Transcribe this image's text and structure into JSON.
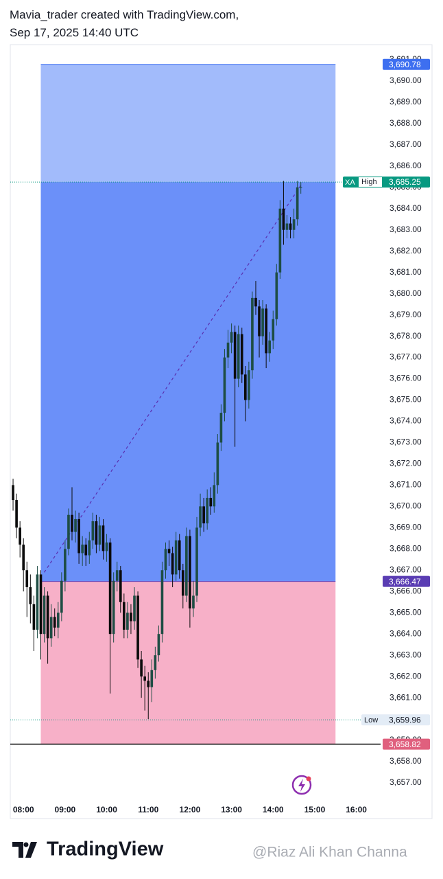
{
  "header": {
    "line1": "Mavia_trader created with TradingView.com,",
    "line2": "Sep 17, 2025 14:40 UTC"
  },
  "chart_data": {
    "type": "candlestick",
    "x": [
      "07:45",
      "07:50",
      "07:55",
      "08:00",
      "08:05",
      "08:10",
      "08:15",
      "08:20",
      "08:25",
      "08:30",
      "08:35",
      "08:40",
      "08:45",
      "08:50",
      "08:55",
      "09:00",
      "09:05",
      "09:10",
      "09:15",
      "09:20",
      "09:25",
      "09:30",
      "09:35",
      "09:40",
      "09:45",
      "09:50",
      "09:55",
      "10:00",
      "10:05",
      "10:10",
      "10:15",
      "10:20",
      "10:25",
      "10:30",
      "10:35",
      "10:40",
      "10:45",
      "10:50",
      "10:55",
      "11:00",
      "11:05",
      "11:10",
      "11:15",
      "11:20",
      "11:25",
      "11:30",
      "11:35",
      "11:40",
      "11:45",
      "11:50",
      "11:55",
      "12:00",
      "12:05",
      "12:10",
      "12:15",
      "12:20",
      "12:25",
      "12:30",
      "12:35",
      "12:40",
      "12:45",
      "12:50",
      "12:55",
      "13:00",
      "13:05",
      "13:10",
      "13:15",
      "13:20",
      "13:25",
      "13:30",
      "13:35",
      "13:40",
      "13:45",
      "13:50",
      "13:55",
      "14:00",
      "14:05",
      "14:10",
      "14:15",
      "14:20",
      "14:25",
      "14:30",
      "14:35",
      "14:40"
    ],
    "open": [
      3671.0,
      3670.3,
      3669.0,
      3668.2,
      3667.0,
      3666.2,
      3665.4,
      3664.2,
      3666.8,
      3664.0,
      3665.8,
      3663.8,
      3664.8,
      3664.3,
      3665.0,
      3666.5,
      3668.0,
      3669.6,
      3668.8,
      3669.4,
      3667.8,
      3668.2,
      3667.7,
      3668.4,
      3669.3,
      3668.2,
      3669.1,
      3667.9,
      3668.3,
      3664.0,
      3666.5,
      3667.0,
      3665.5,
      3664.2,
      3665.0,
      3664.6,
      3665.8,
      3662.8,
      3662.0,
      3661.8,
      3661.5,
      3662.3,
      3663.0,
      3664.0,
      3667.0,
      3668.0,
      3667.8,
      3666.8,
      3668.4,
      3667.0,
      3665.8,
      3668.6,
      3665.2,
      3665.8,
      3669.0,
      3670.0,
      3669.2,
      3670.4,
      3670.0,
      3671.0,
      3673.0,
      3674.4,
      3677.0,
      3677.7,
      3678.2,
      3676.0,
      3678.1,
      3676.2,
      3675.0,
      3676.4,
      3679.8,
      3679.4,
      3678.0,
      3679.3,
      3677.2,
      3677.8,
      3678.8,
      3681.0,
      3684.0,
      3683.0,
      3683.3,
      3683.0,
      3683.5,
      3685.0
    ],
    "high": [
      3671.3,
      3670.6,
      3669.3,
      3668.5,
      3667.4,
      3666.8,
      3665.8,
      3667.2,
      3667.0,
      3666.2,
      3666.0,
      3665.4,
      3665.2,
      3665.5,
      3666.9,
      3668.4,
      3669.9,
      3670.9,
      3669.8,
      3669.7,
      3668.6,
      3668.5,
      3668.8,
      3669.7,
      3669.6,
      3669.5,
      3669.4,
      3668.7,
      3668.5,
      3666.9,
      3667.4,
      3667.2,
      3665.9,
      3665.5,
      3665.4,
      3666.2,
      3666.0,
      3663.2,
      3662.5,
      3662.2,
      3662.8,
      3663.4,
      3664.4,
      3667.4,
      3668.3,
      3668.4,
      3668.1,
      3668.8,
      3668.7,
      3667.3,
      3669.0,
      3668.9,
      3666.5,
      3669.5,
      3670.6,
      3670.4,
      3670.8,
      3670.9,
      3671.6,
      3673.4,
      3674.8,
      3677.4,
      3678.3,
      3678.6,
      3678.5,
      3678.5,
      3678.4,
      3676.6,
      3676.8,
      3680.1,
      3680.6,
      3679.7,
      3679.7,
      3679.5,
      3678.2,
      3679.2,
      3681.4,
      3684.4,
      3685.3,
      3683.7,
      3683.6,
      3684.0,
      3685.3,
      3685.25
    ],
    "low": [
      3669.8,
      3668.5,
      3667.6,
      3666.0,
      3664.8,
      3664.5,
      3663.2,
      3663.8,
      3662.8,
      3663.6,
      3662.6,
      3663.4,
      3663.9,
      3663.8,
      3664.6,
      3666.0,
      3667.7,
      3668.4,
      3668.3,
      3667.3,
      3667.2,
      3667.2,
      3667.3,
      3668.0,
      3667.8,
      3667.9,
      3667.5,
      3667.4,
      3661.2,
      3663.6,
      3666.0,
      3665.0,
      3663.8,
      3663.8,
      3664.0,
      3664.2,
      3662.4,
      3661.0,
      3660.4,
      3660.0,
      3660.8,
      3661.9,
      3662.7,
      3663.6,
      3666.6,
      3667.2,
      3666.2,
      3666.5,
      3666.6,
      3665.2,
      3665.5,
      3664.3,
      3664.8,
      3665.5,
      3668.6,
      3668.8,
      3668.9,
      3669.6,
      3669.7,
      3670.6,
      3672.6,
      3674.0,
      3676.5,
      3677.2,
      3672.8,
      3675.6,
      3675.8,
      3674.0,
      3674.6,
      3676.0,
      3679.0,
      3677.0,
      3677.6,
      3676.5,
      3676.8,
      3677.4,
      3678.5,
      3680.7,
      3682.3,
      3682.6,
      3682.6,
      3682.6,
      3683.2,
      3684.7
    ],
    "close": [
      3670.3,
      3669.0,
      3668.2,
      3667.0,
      3666.2,
      3665.4,
      3664.2,
      3666.8,
      3664.0,
      3665.8,
      3663.8,
      3664.8,
      3664.3,
      3665.0,
      3666.5,
      3668.0,
      3669.6,
      3668.8,
      3669.4,
      3667.8,
      3668.2,
      3667.7,
      3668.4,
      3669.3,
      3668.2,
      3669.1,
      3667.9,
      3668.3,
      3664.0,
      3666.5,
      3667.0,
      3665.5,
      3664.2,
      3665.0,
      3664.6,
      3665.8,
      3662.8,
      3662.0,
      3661.8,
      3661.5,
      3662.3,
      3663.0,
      3664.0,
      3667.0,
      3668.0,
      3667.8,
      3666.8,
      3668.4,
      3667.0,
      3665.8,
      3668.6,
      3665.2,
      3665.8,
      3669.0,
      3670.0,
      3669.2,
      3670.4,
      3670.0,
      3671.0,
      3673.0,
      3674.4,
      3677.0,
      3677.7,
      3678.2,
      3676.0,
      3678.1,
      3676.2,
      3675.0,
      3676.4,
      3679.8,
      3679.4,
      3678.0,
      3679.3,
      3677.2,
      3677.8,
      3678.8,
      3681.0,
      3684.0,
      3683.0,
      3683.3,
      3683.0,
      3683.5,
      3685.0,
      3685.0
    ],
    "up_color": "#1e4d44",
    "down_color": "#0b0b0b",
    "xlim": [
      "07:41",
      "16:35"
    ],
    "xticks": [
      "08:00",
      "09:00",
      "10:00",
      "11:00",
      "12:00",
      "13:00",
      "14:00",
      "15:00",
      "16:00"
    ],
    "ylim": [
      3655.32,
      3691.71
    ],
    "yticks": [
      {
        "value": 3657,
        "label": "3,657.00"
      },
      {
        "value": 3658,
        "label": "3,658.00"
      },
      {
        "value": 3659,
        "label": "3,659.00"
      },
      {
        "value": 3660,
        "label": "3,660.00"
      },
      {
        "value": 3661,
        "label": "3,661.00"
      },
      {
        "value": 3662,
        "label": "3,662.00"
      },
      {
        "value": 3663,
        "label": "3,663.00"
      },
      {
        "value": 3664,
        "label": "3,664.00"
      },
      {
        "value": 3665,
        "label": "3,665.00"
      },
      {
        "value": 3666,
        "label": "3,666.00"
      },
      {
        "value": 3667,
        "label": "3,667.00"
      },
      {
        "value": 3668,
        "label": "3,668.00"
      },
      {
        "value": 3669,
        "label": "3,669.00"
      },
      {
        "value": 3670,
        "label": "3,670.00"
      },
      {
        "value": 3671,
        "label": "3,671.00"
      },
      {
        "value": 3672,
        "label": "3,672.00"
      },
      {
        "value": 3673,
        "label": "3,673.00"
      },
      {
        "value": 3674,
        "label": "3,674.00"
      },
      {
        "value": 3675,
        "label": "3,675.00"
      },
      {
        "value": 3676,
        "label": "3,676.00"
      },
      {
        "value": 3677,
        "label": "3,677.00"
      },
      {
        "value": 3678,
        "label": "3,678.00"
      },
      {
        "value": 3679,
        "label": "3,679.00"
      },
      {
        "value": 3680,
        "label": "3,680.00"
      },
      {
        "value": 3681,
        "label": "3,681.00"
      },
      {
        "value": 3682,
        "label": "3,682.00"
      },
      {
        "value": 3683,
        "label": "3,683.00"
      },
      {
        "value": 3684,
        "label": "3,684.00"
      },
      {
        "value": 3685,
        "label": "3,685.00"
      },
      {
        "value": 3686,
        "label": "3,686.00"
      },
      {
        "value": 3687,
        "label": "3,687.00"
      },
      {
        "value": 3688,
        "label": "3,688.00"
      },
      {
        "value": 3689,
        "label": "3,689.00"
      },
      {
        "value": 3690,
        "label": "3,690.00"
      },
      {
        "value": 3691,
        "label": "3,691.00"
      }
    ],
    "grid": false,
    "position": {
      "start": "08:25",
      "end": "15:30",
      "target": {
        "value": 3690.78,
        "label": "3,690.78",
        "color": "#3d6ff0"
      },
      "entry": {
        "value": 3666.47,
        "label": "3,666.47",
        "color": "#5a3db3"
      },
      "stop": {
        "value": 3658.82,
        "label": "3,658.82",
        "color": "#e0607e"
      },
      "profit_color_light": "#a2bbfb",
      "profit_color": "#6b90f9",
      "loss_color": "#f7b0c8"
    },
    "high_marker": {
      "text": "High",
      "value": 3685.25,
      "label": "3,685.25",
      "tag": "XA",
      "color": "#089981"
    },
    "low_marker": {
      "text": "Low",
      "value": 3659.96,
      "label": "3,659.96",
      "color": "#e3ecf6"
    },
    "trend_line": {
      "x": [
        "08:30",
        "14:40"
      ],
      "y": [
        3666.9,
        3685.1
      ],
      "color": "#5a2fb0"
    }
  },
  "footer": {
    "brand": "TradingView",
    "watermark": "@Riaz Ali Khan Channa"
  }
}
